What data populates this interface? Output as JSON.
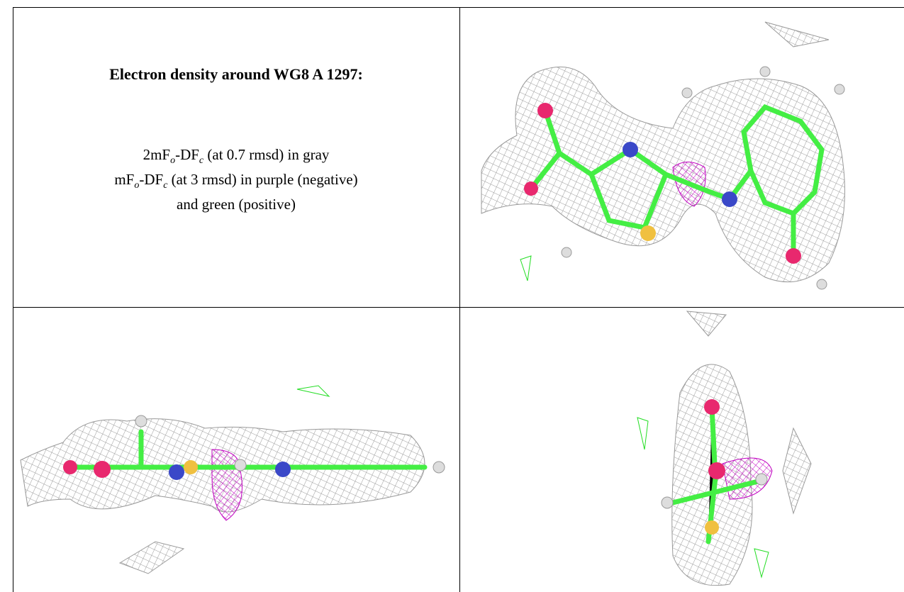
{
  "header": {
    "title": "Electron density around WG8 A 1297:"
  },
  "legend": {
    "lines": [
      {
        "parts": [
          "2mF",
          "o",
          "-DF",
          "c",
          " (at 0.7 rmsd) in gray"
        ]
      },
      {
        "parts": [
          "mF",
          "o",
          "-DF",
          "c",
          " (at 3 rmsd) in purple (negative)"
        ]
      },
      {
        "parts": [
          "and green (positive)"
        ]
      }
    ]
  }
}
